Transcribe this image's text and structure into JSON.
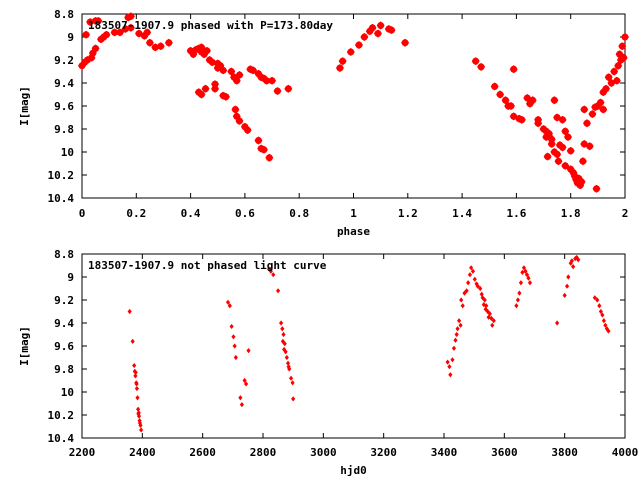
{
  "colors": {
    "points": "#ff0000",
    "axes": "#000000",
    "background": "#ffffff"
  },
  "chart_data": [
    {
      "type": "scatter",
      "title": "183507-1907.9 phased with P=173.80day",
      "xlabel": "phase",
      "ylabel": "I[mag]",
      "xlim": [
        0,
        2
      ],
      "ylim": [
        8.8,
        10.4
      ],
      "y_inverted": true,
      "grid": false,
      "marker": "star",
      "x_ticks": [
        "0",
        "0.2",
        "0.4",
        "0.6",
        "0.8",
        "1",
        "1.2",
        "1.4",
        "1.6",
        "1.8",
        "2"
      ],
      "y_ticks": [
        "8.8",
        "9",
        "9.2",
        "9.4",
        "9.6",
        "9.8",
        "10",
        "10.2",
        "10.4"
      ],
      "series": [
        {
          "points": [
            [
              0.0,
              9.25
            ],
            [
              0.01,
              9.22
            ],
            [
              0.015,
              8.98
            ],
            [
              0.02,
              9.2
            ],
            [
              0.035,
              9.18
            ],
            [
              0.04,
              9.14
            ],
            [
              0.05,
              9.1
            ],
            [
              0.03,
              8.87
            ],
            [
              0.05,
              8.86
            ],
            [
              0.06,
              8.86
            ],
            [
              0.07,
              9.02
            ],
            [
              0.08,
              9.0
            ],
            [
              0.09,
              8.98
            ],
            [
              0.12,
              8.96
            ],
            [
              0.14,
              8.96
            ],
            [
              0.16,
              8.93
            ],
            [
              0.18,
              8.92
            ],
            [
              0.17,
              8.83
            ],
            [
              0.18,
              8.82
            ],
            [
              0.21,
              8.97
            ],
            [
              0.23,
              8.99
            ],
            [
              0.24,
              8.96
            ],
            [
              0.25,
              9.05
            ],
            [
              0.27,
              9.09
            ],
            [
              0.29,
              9.08
            ],
            [
              0.32,
              9.05
            ],
            [
              0.4,
              9.12
            ],
            [
              0.41,
              9.15
            ],
            [
              0.42,
              9.11
            ],
            [
              0.43,
              9.1
            ],
            [
              0.44,
              9.09
            ],
            [
              0.44,
              9.13
            ],
            [
              0.45,
              9.15
            ],
            [
              0.46,
              9.12
            ],
            [
              0.43,
              9.48
            ],
            [
              0.44,
              9.5
            ],
            [
              0.455,
              9.45
            ],
            [
              0.47,
              9.2
            ],
            [
              0.48,
              9.22
            ],
            [
              0.49,
              9.41
            ],
            [
              0.49,
              9.45
            ],
            [
              0.5,
              9.23
            ],
            [
              0.5,
              9.27
            ],
            [
              0.51,
              9.25
            ],
            [
              0.52,
              9.29
            ],
            [
              0.52,
              9.51
            ],
            [
              0.53,
              9.52
            ],
            [
              0.55,
              9.3
            ],
            [
              0.56,
              9.35
            ],
            [
              0.57,
              9.38
            ],
            [
              0.58,
              9.33
            ],
            [
              0.565,
              9.63
            ],
            [
              0.57,
              9.69
            ],
            [
              0.58,
              9.73
            ],
            [
              0.6,
              9.78
            ],
            [
              0.61,
              9.81
            ],
            [
              0.62,
              9.28
            ],
            [
              0.63,
              9.29
            ],
            [
              0.65,
              9.32
            ],
            [
              0.66,
              9.35
            ],
            [
              0.67,
              9.36
            ],
            [
              0.68,
              9.38
            ],
            [
              0.65,
              9.9
            ],
            [
              0.66,
              9.97
            ],
            [
              0.67,
              9.98
            ],
            [
              0.69,
              10.05
            ],
            [
              0.7,
              9.38
            ],
            [
              0.72,
              9.47
            ],
            [
              0.76,
              9.45
            ],
            [
              0.95,
              9.27
            ],
            [
              0.96,
              9.21
            ],
            [
              0.99,
              9.13
            ],
            [
              1.02,
              9.07
            ],
            [
              1.04,
              9.0
            ],
            [
              1.06,
              8.95
            ],
            [
              1.07,
              8.92
            ],
            [
              1.09,
              8.97
            ],
            [
              1.1,
              8.9
            ],
            [
              1.13,
              8.93
            ],
            [
              1.14,
              8.94
            ],
            [
              1.19,
              9.05
            ],
            [
              1.45,
              9.21
            ],
            [
              1.47,
              9.26
            ],
            [
              1.52,
              9.43
            ],
            [
              1.54,
              9.5
            ],
            [
              1.56,
              9.55
            ],
            [
              1.58,
              9.6
            ],
            [
              1.59,
              9.69
            ],
            [
              1.61,
              9.71
            ],
            [
              1.59,
              9.28
            ],
            [
              1.64,
              9.53
            ],
            [
              1.65,
              9.58
            ],
            [
              1.66,
              9.55
            ],
            [
              1.68,
              9.75
            ],
            [
              1.7,
              9.8
            ],
            [
              1.71,
              9.82
            ],
            [
              1.72,
              9.86
            ],
            [
              1.73,
              9.93
            ],
            [
              1.71,
              9.87
            ],
            [
              1.715,
              10.04
            ],
            [
              1.72,
              9.84
            ],
            [
              1.73,
              9.89
            ],
            [
              1.74,
              10.0
            ],
            [
              1.75,
              10.02
            ],
            [
              1.755,
              10.08
            ],
            [
              1.76,
              9.94
            ],
            [
              1.77,
              9.96
            ],
            [
              1.78,
              10.12
            ],
            [
              1.79,
              9.87
            ],
            [
              1.8,
              10.15
            ],
            [
              1.81,
              10.18
            ],
            [
              1.815,
              10.21
            ],
            [
              1.82,
              10.24
            ],
            [
              1.825,
              10.27
            ],
            [
              1.83,
              10.23
            ],
            [
              1.835,
              10.29
            ],
            [
              1.84,
              10.26
            ],
            [
              1.845,
              10.08
            ],
            [
              1.85,
              9.93
            ],
            [
              1.86,
              9.75
            ],
            [
              1.87,
              9.95
            ],
            [
              1.88,
              9.67
            ],
            [
              1.89,
              9.61
            ],
            [
              1.895,
              10.32
            ],
            [
              1.9,
              9.6
            ],
            [
              1.91,
              9.57
            ],
            [
              1.92,
              9.48
            ],
            [
              1.93,
              9.45
            ],
            [
              1.94,
              9.35
            ],
            [
              1.95,
              9.4
            ],
            [
              1.96,
              9.3
            ],
            [
              1.97,
              9.38
            ],
            [
              1.975,
              9.25
            ],
            [
              1.98,
              9.15
            ],
            [
              1.99,
              9.08
            ],
            [
              1.985,
              9.2
            ],
            [
              1.995,
              9.18
            ],
            [
              2.0,
              9.0
            ],
            [
              1.92,
              9.63
            ],
            [
              1.8,
              9.99
            ],
            [
              1.78,
              9.82
            ],
            [
              1.77,
              9.72
            ],
            [
              1.75,
              9.7
            ],
            [
              1.74,
              9.55
            ],
            [
              1.68,
              9.72
            ],
            [
              1.62,
              9.72
            ],
            [
              1.57,
              9.6
            ],
            [
              1.85,
              9.63
            ]
          ]
        }
      ]
    },
    {
      "type": "scatter",
      "title": "183507-1907.9 not phased light curve",
      "xlabel": "hjd0",
      "ylabel": "I[mag]",
      "xlim": [
        2200,
        4000
      ],
      "ylim": [
        8.8,
        10.4
      ],
      "y_inverted": true,
      "grid": false,
      "marker": "diamond",
      "x_ticks": [
        "2200",
        "2400",
        "2600",
        "2800",
        "3000",
        "3200",
        "3400",
        "3600",
        "3800",
        "4000"
      ],
      "y_ticks": [
        "8.8",
        "9",
        "9.2",
        "9.4",
        "9.6",
        "9.8",
        "10",
        "10.2",
        "10.4"
      ],
      "series": [
        {
          "points": [
            [
              2358,
              9.3
            ],
            [
              2368,
              9.56
            ],
            [
              2373,
              9.77
            ],
            [
              2375,
              9.82
            ],
            [
              2377,
              9.86
            ],
            [
              2380,
              9.92
            ],
            [
              2382,
              9.97
            ],
            [
              2384,
              10.05
            ],
            [
              2388,
              10.18
            ],
            [
              2389,
              10.21
            ],
            [
              2391,
              10.25
            ],
            [
              2394,
              10.29
            ],
            [
              2396,
              10.33
            ],
            [
              2378,
              9.83
            ],
            [
              2381,
              9.93
            ],
            [
              2386,
              10.15
            ],
            [
              2387,
              10.19
            ],
            [
              2392,
              10.27
            ],
            [
              2684,
              9.22
            ],
            [
              2690,
              9.25
            ],
            [
              2696,
              9.43
            ],
            [
              2702,
              9.52
            ],
            [
              2706,
              9.6
            ],
            [
              2710,
              9.7
            ],
            [
              2725,
              10.05
            ],
            [
              2730,
              10.11
            ],
            [
              2739,
              9.9
            ],
            [
              2744,
              9.93
            ],
            [
              2752,
              9.64
            ],
            [
              2820,
              8.93
            ],
            [
              2826,
              8.95
            ],
            [
              2834,
              8.98
            ],
            [
              2850,
              9.12
            ],
            [
              2860,
              9.4
            ],
            [
              2864,
              9.45
            ],
            [
              2868,
              9.5
            ],
            [
              2872,
              9.58
            ],
            [
              2875,
              9.65
            ],
            [
              2879,
              9.7
            ],
            [
              2883,
              9.75
            ],
            [
              2887,
              9.8
            ],
            [
              2893,
              9.88
            ],
            [
              2898,
              9.92
            ],
            [
              2900,
              10.06
            ],
            [
              2866,
              9.56
            ],
            [
              2870,
              9.63
            ],
            [
              2885,
              9.78
            ],
            [
              3412,
              9.74
            ],
            [
              3418,
              9.78
            ],
            [
              3421,
              9.85
            ],
            [
              3428,
              9.72
            ],
            [
              3433,
              9.62
            ],
            [
              3438,
              9.55
            ],
            [
              3445,
              9.45
            ],
            [
              3450,
              9.38
            ],
            [
              3457,
              9.2
            ],
            [
              3462,
              9.25
            ],
            [
              3468,
              9.14
            ],
            [
              3475,
              9.12
            ],
            [
              3480,
              9.05
            ],
            [
              3486,
              8.98
            ],
            [
              3490,
              8.92
            ],
            [
              3496,
              8.95
            ],
            [
              3502,
              9.02
            ],
            [
              3508,
              9.06
            ],
            [
              3512,
              9.08
            ],
            [
              3520,
              9.1
            ],
            [
              3525,
              9.15
            ],
            [
              3528,
              9.18
            ],
            [
              3535,
              9.2
            ],
            [
              3540,
              9.25
            ],
            [
              3545,
              9.3
            ],
            [
              3552,
              9.32
            ],
            [
              3557,
              9.36
            ],
            [
              3560,
              9.42
            ],
            [
              3565,
              9.38
            ],
            [
              3640,
              9.25
            ],
            [
              3645,
              9.2
            ],
            [
              3650,
              9.14
            ],
            [
              3655,
              9.05
            ],
            [
              3660,
              8.96
            ],
            [
              3665,
              8.92
            ],
            [
              3670,
              8.95
            ],
            [
              3675,
              8.98
            ],
            [
              3680,
              9.01
            ],
            [
              3685,
              9.05
            ],
            [
              3775,
              9.4
            ],
            [
              3800,
              9.16
            ],
            [
              3808,
              9.08
            ],
            [
              3812,
              9.0
            ],
            [
              3820,
              8.88
            ],
            [
              3824,
              8.86
            ],
            [
              3828,
              8.91
            ],
            [
              3835,
              8.84
            ],
            [
              3840,
              8.83
            ],
            [
              3845,
              8.85
            ],
            [
              3900,
              9.18
            ],
            [
              3908,
              9.2
            ],
            [
              3915,
              9.25
            ],
            [
              3920,
              9.3
            ],
            [
              3925,
              9.33
            ],
            [
              3930,
              9.38
            ],
            [
              3935,
              9.42
            ],
            [
              3940,
              9.45
            ],
            [
              3945,
              9.47
            ],
            [
              3532,
              9.24
            ],
            [
              3538,
              9.28
            ],
            [
              3548,
              9.35
            ],
            [
              3455,
              9.42
            ],
            [
              3442,
              9.5
            ]
          ]
        }
      ]
    }
  ]
}
